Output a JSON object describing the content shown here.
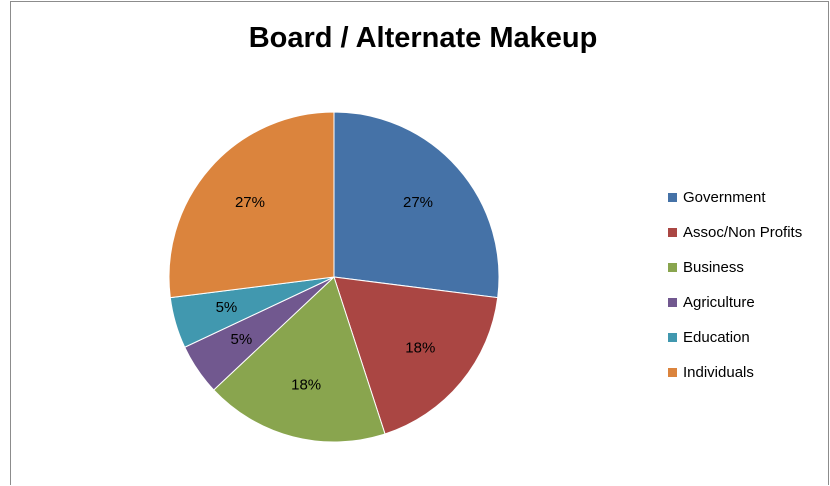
{
  "chart_data": {
    "type": "pie",
    "title": "Board / Alternate Makeup",
    "legend_position": "right",
    "slices": [
      {
        "label": "Government",
        "value": 27,
        "data_label": "27%",
        "color": "#4572A7"
      },
      {
        "label": "Assoc/Non Profits",
        "value": 18,
        "data_label": "18%",
        "color": "#AA4643"
      },
      {
        "label": "Business",
        "value": 18,
        "data_label": "18%",
        "color": "#89A54E"
      },
      {
        "label": "Agriculture",
        "value": 5,
        "data_label": "5%",
        "color": "#71588F"
      },
      {
        "label": "Education",
        "value": 5,
        "data_label": "5%",
        "color": "#4198AF"
      },
      {
        "label": "Individuals",
        "value": 27,
        "data_label": "27%",
        "color": "#DB843D"
      }
    ]
  }
}
